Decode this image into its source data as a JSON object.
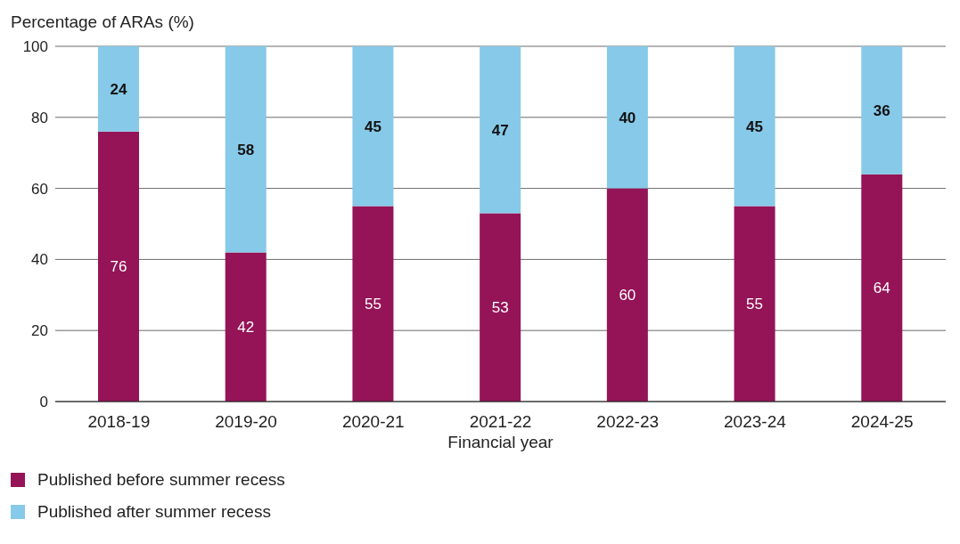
{
  "chart_data": {
    "type": "bar",
    "stacked": true,
    "ylabel": "Percentage of ARAs (%)",
    "xlabel": "Financial year",
    "categories": [
      "2018-19",
      "2019-20",
      "2020-21",
      "2021-22",
      "2022-23",
      "2023-24",
      "2024-25"
    ],
    "series": [
      {
        "name": "Published before summer recess",
        "color": "#941457",
        "values": [
          76,
          42,
          55,
          53,
          60,
          55,
          64
        ]
      },
      {
        "name": "Published after summer recess",
        "color": "#87c9e8",
        "values": [
          24,
          58,
          45,
          47,
          40,
          45,
          36
        ]
      }
    ],
    "ylim": [
      0,
      100
    ],
    "yticks": [
      0,
      20,
      40,
      60,
      80,
      100
    ],
    "grid": "y",
    "legend": "bottom",
    "data_labels": true
  }
}
